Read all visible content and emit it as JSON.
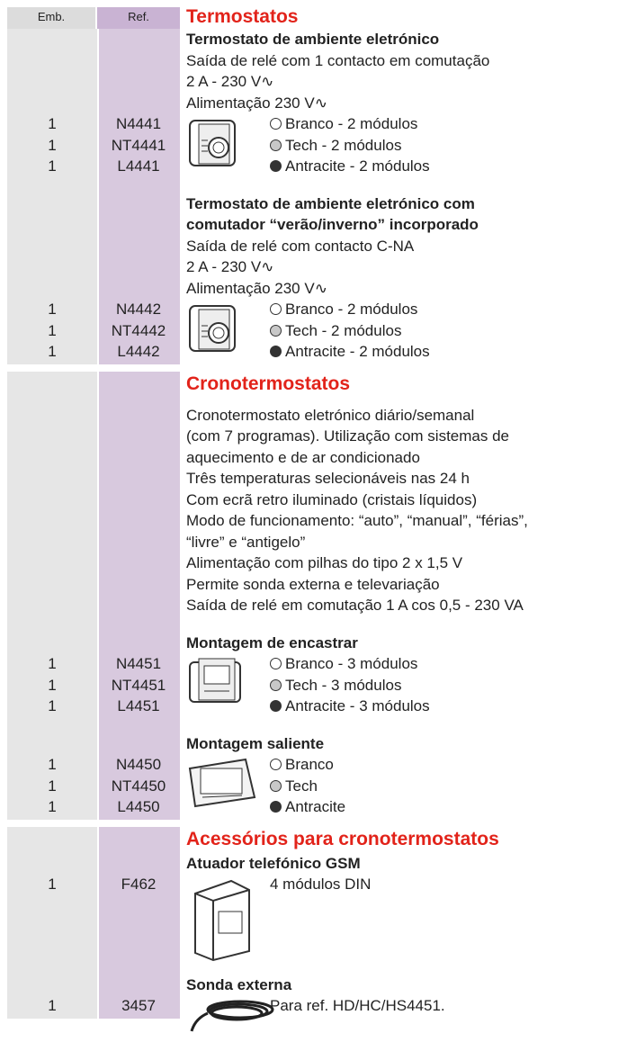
{
  "header": {
    "emb": "Emb.",
    "ref": "Ref."
  },
  "sections": [
    {
      "title": "Termostatos",
      "groups": [
        {
          "heading": [
            "Termostato de ambiente eletrónico"
          ],
          "lines": [
            "Saída de relé com 1 contacto em comutação",
            "2 A - 230 V∿",
            "Alimentação 230 V∿"
          ],
          "items": [
            {
              "emb": "1",
              "ref": "N4441",
              "text": "Branco - 2 módulos"
            },
            {
              "emb": "1",
              "ref": "NT4441",
              "text": "Tech - 2 módulos"
            },
            {
              "emb": "1",
              "ref": "L4441",
              "text": "Antracite - 2 módulos"
            }
          ]
        },
        {
          "heading": [
            "Termostato de ambiente eletrónico com",
            "comutador “verão/inverno” incorporado"
          ],
          "lines": [
            "Saída de relé com contacto C-NA",
            "2 A - 230 V∿",
            "Alimentação 230 V∿"
          ],
          "items": [
            {
              "emb": "1",
              "ref": "N4442",
              "text": "Branco - 2 módulos"
            },
            {
              "emb": "1",
              "ref": "NT4442",
              "text": "Tech - 2 módulos"
            },
            {
              "emb": "1",
              "ref": "L4442",
              "text": "Antracite - 2 módulos"
            }
          ]
        }
      ]
    },
    {
      "title": "Cronotermostatos",
      "groups": [
        {
          "heading": [],
          "lines": [
            "Cronotermostato eletrónico diário/semanal",
            "(com 7 programas). Utilização com sistemas de",
            "aquecimento e de ar condicionado",
            "Três temperaturas selecionáveis nas 24 h",
            "Com ecrã retro iluminado (cristais líquidos)",
            "Modo de funcionamento: “auto”, “manual”, “férias”,",
            "“livre” e “antigelo”",
            "Alimentação com pilhas do tipo 2 x 1,5 V",
            "Permite sonda externa e televariação",
            "Saída de relé em comutação 1 A cos   0,5 - 230 VA"
          ],
          "items": []
        },
        {
          "heading": [
            "Montagem de encastrar"
          ],
          "lines": [],
          "items": [
            {
              "emb": "1",
              "ref": "N4451",
              "text": "Branco - 3 módulos"
            },
            {
              "emb": "1",
              "ref": "NT4451",
              "text": "Tech - 3 módulos"
            },
            {
              "emb": "1",
              "ref": "L4451",
              "text": "Antracite - 3 módulos"
            }
          ]
        },
        {
          "heading": [
            "Montagem saliente"
          ],
          "lines": [],
          "items": [
            {
              "emb": "1",
              "ref": "N4450",
              "text": "Branco"
            },
            {
              "emb": "1",
              "ref": "NT4450",
              "text": "Tech"
            },
            {
              "emb": "1",
              "ref": "L4450",
              "text": "Antracite"
            }
          ]
        }
      ]
    },
    {
      "title": "Acessórios para cronotermostatos",
      "groups": [
        {
          "heading": [
            "Atuador telefónico GSM"
          ],
          "lines": [],
          "items": [
            {
              "emb": "1",
              "ref": "F462",
              "text": "4 módulos DIN"
            }
          ]
        },
        {
          "heading": [
            "Sonda externa"
          ],
          "lines": [],
          "items": [
            {
              "emb": "1",
              "ref": "3457",
              "text": "Para ref. HD/HC/HS4451."
            }
          ]
        }
      ]
    }
  ]
}
